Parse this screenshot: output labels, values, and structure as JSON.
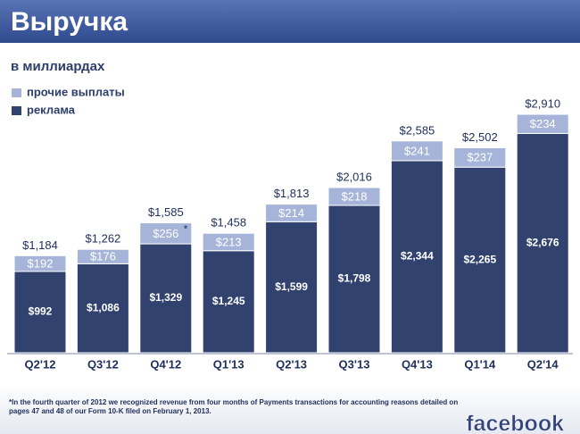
{
  "chart_data": {
    "type": "stacked-bar",
    "title": "Выручка",
    "subtitle": "в миллиардах",
    "categories": [
      "Q2'12",
      "Q3'12",
      "Q4'12",
      "Q1'13",
      "Q2'13",
      "Q3'13",
      "Q4'13",
      "Q1'14",
      "Q2'14"
    ],
    "series": [
      {
        "name": "реклама",
        "color": "#32426f",
        "values": [
          992,
          1086,
          1329,
          1245,
          1599,
          1798,
          2344,
          2265,
          2676
        ],
        "value_labels": [
          "$992",
          "$1,086",
          "$1,329",
          "$1,245",
          "$1,599",
          "$1,798",
          "$2,344",
          "$2,265",
          "$2,676"
        ]
      },
      {
        "name": "прочие выплаты",
        "color": "#a5b4d8",
        "values": [
          192,
          176,
          256,
          213,
          214,
          218,
          241,
          237,
          234
        ],
        "value_labels": [
          "$192",
          "$176",
          "$256",
          "$213",
          "$214",
          "$218",
          "$241",
          "$237",
          "$234"
        ]
      }
    ],
    "totals": [
      1184,
      1262,
      1585,
      1458,
      1813,
      2016,
      2585,
      2502,
      2910
    ],
    "total_labels": [
      "$1,184",
      "$1,262",
      "$1,585",
      "$1,458",
      "$1,813",
      "$2,016",
      "$2,585",
      "$2,502",
      "$2,910"
    ],
    "note_marker": "*",
    "footnote": "*In the fourth quarter of 2012 we recognized revenue from four months of Payments transactions for accounting reasons detailed on pages 47 and 48 of our Form 10-K filed on February 1, 2013.",
    "logo": "facebook"
  }
}
